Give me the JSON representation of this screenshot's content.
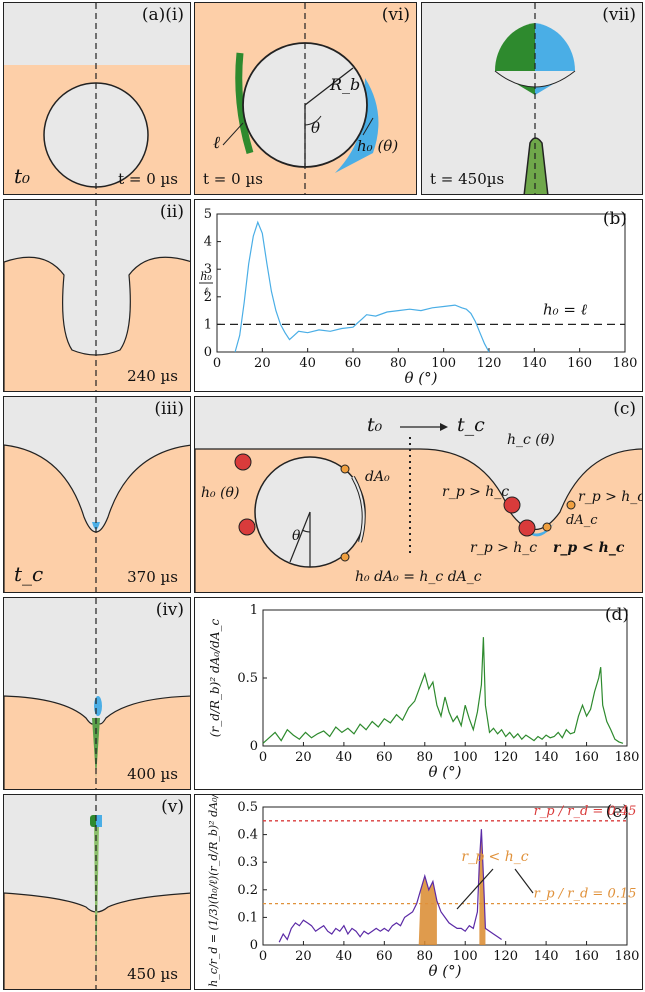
{
  "panels": {
    "a_i": {
      "tag": "(a)(i)",
      "time": "t = 0 µs",
      "sym": "t₀"
    },
    "a_vi": {
      "tag": "(vi)",
      "time": "t = 0 µs",
      "ell": "ℓ",
      "rb": "R_b",
      "theta": "θ",
      "h0": "h₀ (θ)"
    },
    "a_vii": {
      "tag": "(vii)",
      "time": "t = 450µs"
    },
    "a_ii": {
      "tag": "(ii)",
      "time": "240 µs"
    },
    "a_iii": {
      "tag": "(iii)",
      "time": "370 µs",
      "sym": "t_c"
    },
    "a_iv": {
      "tag": "(iv)",
      "time": "400 µs"
    },
    "a_v": {
      "tag": "(v)",
      "time": "450 µs"
    }
  },
  "colors": {
    "liquid": "#fdcfa8",
    "gas": "#e8e8e8",
    "blue": "#4aaee6",
    "green": "#2e8a2e",
    "purple": "#5b2aa6",
    "orange": "#e0913a",
    "red": "#d93b3b"
  },
  "chart_data": [
    {
      "id": "b",
      "tag": "(b)",
      "type": "line",
      "xlabel": "θ (°)",
      "ylabel": "h₀ / ℓ",
      "xlim": [
        0,
        180
      ],
      "ylim": [
        0,
        5
      ],
      "xticks": [
        0,
        20,
        40,
        60,
        80,
        100,
        120,
        140,
        160,
        180
      ],
      "yticks": [
        0,
        1,
        2,
        3,
        4,
        5
      ],
      "hline": {
        "y": 1,
        "label": "h₀ = ℓ"
      },
      "series": [
        {
          "color": "#4aaee6",
          "x": [
            8,
            10,
            12,
            14,
            16,
            18,
            20,
            22,
            24,
            26,
            28,
            30,
            32,
            34,
            36,
            40,
            45,
            50,
            55,
            60,
            62,
            64,
            66,
            70,
            75,
            80,
            85,
            90,
            95,
            100,
            105,
            108,
            110,
            112,
            114,
            116,
            118,
            120
          ],
          "y": [
            0,
            0.6,
            1.8,
            3.2,
            4.2,
            4.7,
            4.3,
            3.2,
            2.2,
            1.5,
            1.0,
            0.7,
            0.45,
            0.6,
            0.75,
            0.7,
            0.8,
            0.75,
            0.85,
            0.9,
            1.05,
            1.2,
            1.35,
            1.3,
            1.45,
            1.5,
            1.55,
            1.5,
            1.6,
            1.65,
            1.7,
            1.6,
            1.55,
            1.4,
            1.1,
            0.7,
            0.3,
            0
          ]
        }
      ]
    },
    {
      "id": "c",
      "tag": "(c)",
      "type": "schematic",
      "t0": "t₀",
      "tc": "t_c",
      "h0": "h₀ (θ)",
      "dA0": "dA₀",
      "theta": "θ",
      "hc": "h_c (θ)",
      "dAc": "dA_c",
      "rp_gt_1": "r_p > h_c",
      "rp_gt_2": "r_p > h_c",
      "rp_gt_3": "r_p > h_c",
      "rp_lt": "r_p < h_c",
      "eq": "h₀ dA₀ = h_c dA_c"
    },
    {
      "id": "d",
      "tag": "(d)",
      "type": "line",
      "xlabel": "θ (°)",
      "ylabel": "(r_d/R_b)² dA₀/dA_c",
      "xlim": [
        0,
        180
      ],
      "ylim": [
        0,
        1
      ],
      "xticks": [
        0,
        20,
        40,
        60,
        80,
        100,
        120,
        140,
        160,
        180
      ],
      "yticks": [
        0,
        0.5,
        1
      ],
      "ytick_labels": [
        "0",
        "0.5",
        "1"
      ],
      "series": [
        {
          "color": "#2e8a2e",
          "x": [
            0,
            3,
            6,
            9,
            12,
            15,
            18,
            21,
            24,
            27,
            30,
            33,
            36,
            39,
            42,
            45,
            48,
            51,
            54,
            57,
            60,
            63,
            66,
            69,
            72,
            75,
            78,
            80,
            82,
            84,
            86,
            88,
            90,
            92,
            94,
            96,
            98,
            100,
            102,
            104,
            106,
            108,
            109,
            110,
            112,
            114,
            116,
            118,
            120,
            122,
            124,
            126,
            128,
            130,
            132,
            134,
            136,
            138,
            140,
            142,
            144,
            146,
            148,
            150,
            152,
            154,
            156,
            158,
            160,
            162,
            164,
            166,
            167,
            168,
            170,
            172,
            174,
            176,
            178
          ],
          "y": [
            0.02,
            0.06,
            0.1,
            0.04,
            0.12,
            0.08,
            0.05,
            0.1,
            0.06,
            0.09,
            0.11,
            0.07,
            0.14,
            0.1,
            0.13,
            0.09,
            0.16,
            0.12,
            0.18,
            0.14,
            0.2,
            0.17,
            0.23,
            0.19,
            0.28,
            0.33,
            0.45,
            0.53,
            0.42,
            0.47,
            0.3,
            0.22,
            0.36,
            0.25,
            0.18,
            0.22,
            0.15,
            0.3,
            0.2,
            0.12,
            0.25,
            0.45,
            0.8,
            0.3,
            0.1,
            0.13,
            0.09,
            0.12,
            0.07,
            0.1,
            0.06,
            0.09,
            0.05,
            0.08,
            0.06,
            0.04,
            0.07,
            0.05,
            0.08,
            0.06,
            0.07,
            0.1,
            0.06,
            0.12,
            0.09,
            0.1,
            0.22,
            0.3,
            0.22,
            0.27,
            0.4,
            0.5,
            0.58,
            0.3,
            0.18,
            0.12,
            0.05,
            0.03,
            0.02
          ]
        }
      ]
    },
    {
      "id": "e",
      "tag": "(e)",
      "type": "line",
      "xlabel": "θ (°)",
      "ylabel": "h_c/r_d = (1/3)(h₀/ℓ)(r_d/R_b)² dA₀/dA_c",
      "xlim": [
        0,
        180
      ],
      "ylim": [
        0,
        0.5
      ],
      "xticks": [
        0,
        20,
        40,
        60,
        80,
        100,
        120,
        140,
        160,
        180
      ],
      "yticks": [
        0,
        0.1,
        0.2,
        0.3,
        0.4,
        0.5
      ],
      "ytick_labels": [
        "0",
        "0.1",
        "0.2",
        "0.3",
        "0.4",
        "0.5"
      ],
      "hlines": [
        {
          "y": 0.45,
          "label": "r_p / r_d = 0.45",
          "color": "#d93b3b"
        },
        {
          "y": 0.15,
          "label": "r_p / r_d = 0.15",
          "color": "#e0913a"
        }
      ],
      "annot": "r_p < h_c",
      "fill_ranges": [
        [
          77,
          86
        ],
        [
          107,
          110
        ]
      ],
      "series": [
        {
          "color": "#5b2aa6",
          "x": [
            8,
            10,
            12,
            14,
            16,
            18,
            20,
            22,
            24,
            26,
            28,
            30,
            32,
            34,
            36,
            38,
            40,
            42,
            44,
            46,
            48,
            50,
            52,
            54,
            56,
            58,
            60,
            62,
            64,
            66,
            68,
            70,
            72,
            74,
            76,
            78,
            80,
            82,
            84,
            86,
            88,
            90,
            92,
            94,
            96,
            98,
            100,
            102,
            104,
            106,
            107,
            108,
            109,
            110,
            112,
            114,
            116,
            118
          ],
          "y": [
            0.01,
            0.04,
            0.02,
            0.06,
            0.08,
            0.07,
            0.09,
            0.08,
            0.07,
            0.05,
            0.06,
            0.07,
            0.05,
            0.04,
            0.06,
            0.05,
            0.07,
            0.04,
            0.06,
            0.05,
            0.03,
            0.05,
            0.04,
            0.05,
            0.06,
            0.05,
            0.06,
            0.05,
            0.07,
            0.08,
            0.07,
            0.1,
            0.11,
            0.12,
            0.15,
            0.2,
            0.25,
            0.2,
            0.23,
            0.16,
            0.12,
            0.1,
            0.08,
            0.07,
            0.06,
            0.06,
            0.05,
            0.07,
            0.06,
            0.12,
            0.3,
            0.42,
            0.25,
            0.06,
            0.05,
            0.04,
            0.03,
            0.02
          ]
        }
      ]
    }
  ]
}
